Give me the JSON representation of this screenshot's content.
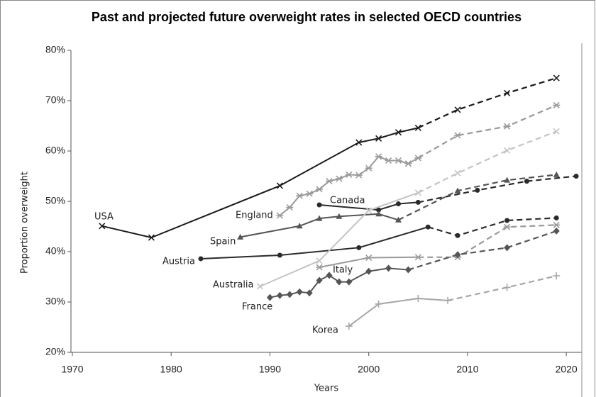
{
  "chart_data": {
    "type": "line",
    "title": "Past and projected future overweight rates in selected OECD countries",
    "x_label": "Years",
    "y_label": "Proportion overweight",
    "xlim": [
      1970,
      2022
    ],
    "ylim": [
      20,
      80
    ],
    "xticks": [
      1970,
      1980,
      1990,
      2000,
      2010,
      2020
    ],
    "yticks": [
      {
        "value": 20,
        "label": "20%"
      },
      {
        "value": 30,
        "label": "30%"
      },
      {
        "value": 40,
        "label": "40%"
      },
      {
        "value": 50,
        "label": "50%"
      },
      {
        "value": 60,
        "label": "60%"
      },
      {
        "value": 70,
        "label": "70%"
      },
      {
        "value": 80,
        "label": "80%"
      }
    ],
    "series": [
      {
        "name": "USA",
        "color": "#1a1a1a",
        "marker": "x",
        "x": [
          1973,
          1978,
          1991,
          1999,
          2001,
          2003,
          2005
        ],
        "values": [
          45.1,
          42.8,
          53.1,
          61.7,
          62.5,
          63.7,
          64.6
        ],
        "projection_x": [
          2009,
          2014,
          2019
        ],
        "projection_values": [
          68.2,
          71.5,
          74.5
        ]
      },
      {
        "name": "England",
        "color": "#9a9a9a",
        "marker": "asterisk",
        "x": [
          1991,
          1992,
          1993,
          1994,
          1995,
          1996,
          1997,
          1998,
          1999,
          2000,
          2001,
          2002,
          2003,
          2004,
          2005
        ],
        "values": [
          47.2,
          48.8,
          51.1,
          51.5,
          52.4,
          54.0,
          54.5,
          55.3,
          55.2,
          56.6,
          58.9,
          58.1,
          58.1,
          57.5,
          58.6
        ],
        "projection_x": [
          2009,
          2014,
          2019
        ],
        "projection_values": [
          63.1,
          64.9,
          69.1
        ]
      },
      {
        "name": "Canada",
        "color": "#2a2a2a",
        "marker": "circle",
        "x": [
          1995,
          2001,
          2003,
          2005
        ],
        "values": [
          49.3,
          48.3,
          49.5,
          49.8
        ],
        "projection_x": [
          2011,
          2016,
          2021
        ],
        "projection_values": [
          52.2,
          54.0,
          55.0
        ]
      },
      {
        "name": "Spain",
        "color": "#555555",
        "marker": "triangle",
        "x": [
          1987,
          1993,
          1995,
          1997,
          2001,
          2003
        ],
        "values": [
          42.9,
          45.1,
          46.6,
          47.0,
          47.5,
          46.3
        ],
        "projection_x": [
          2009,
          2014,
          2019
        ],
        "projection_values": [
          52.1,
          54.2,
          55.3
        ]
      },
      {
        "name": "Austria",
        "color": "#2a2a2a",
        "marker": "circle",
        "x": [
          1983,
          1991,
          1999,
          2006
        ],
        "values": [
          38.6,
          39.3,
          40.8,
          44.9
        ],
        "projection_x": [
          2009,
          2014,
          2019
        ],
        "projection_values": [
          43.2,
          46.2,
          46.7
        ]
      },
      {
        "name": "Italy",
        "color": "#9a9a9a",
        "marker": "asterisk",
        "x": [
          1995,
          2000,
          2005
        ],
        "values": [
          36.9,
          38.8,
          38.9
        ],
        "projection_x": [
          2009,
          2014,
          2019
        ],
        "projection_values": [
          38.9,
          44.9,
          45.3
        ]
      },
      {
        "name": "Australia",
        "color": "#c4c4c4",
        "marker": "x",
        "x": [
          1989,
          1995,
          2000,
          2005
        ],
        "values": [
          33.1,
          38.2,
          48.2,
          51.7
        ],
        "projection_x": [
          2009,
          2014,
          2019
        ],
        "projection_values": [
          55.6,
          60.1,
          63.9
        ]
      },
      {
        "name": "France",
        "color": "#555555",
        "marker": "diamond",
        "x": [
          1990,
          1991,
          1992,
          1993,
          1994,
          1995,
          1996,
          1997,
          1998,
          2000,
          2002,
          2004
        ],
        "values": [
          30.9,
          31.3,
          31.5,
          32.0,
          31.8,
          34.3,
          35.3,
          34.0,
          34.0,
          36.1,
          36.7,
          36.4
        ],
        "projection_x": [
          2009,
          2014,
          2019
        ],
        "projection_values": [
          39.4,
          40.8,
          44.1
        ]
      },
      {
        "name": "Korea",
        "color": "#a6a6a6",
        "marker": "plus",
        "x": [
          1998,
          2001,
          2005,
          2008
        ],
        "values": [
          25.2,
          29.6,
          30.7,
          30.3
        ],
        "projection_x": [
          2014,
          2019
        ],
        "projection_values": [
          32.9,
          35.2
        ]
      }
    ]
  }
}
